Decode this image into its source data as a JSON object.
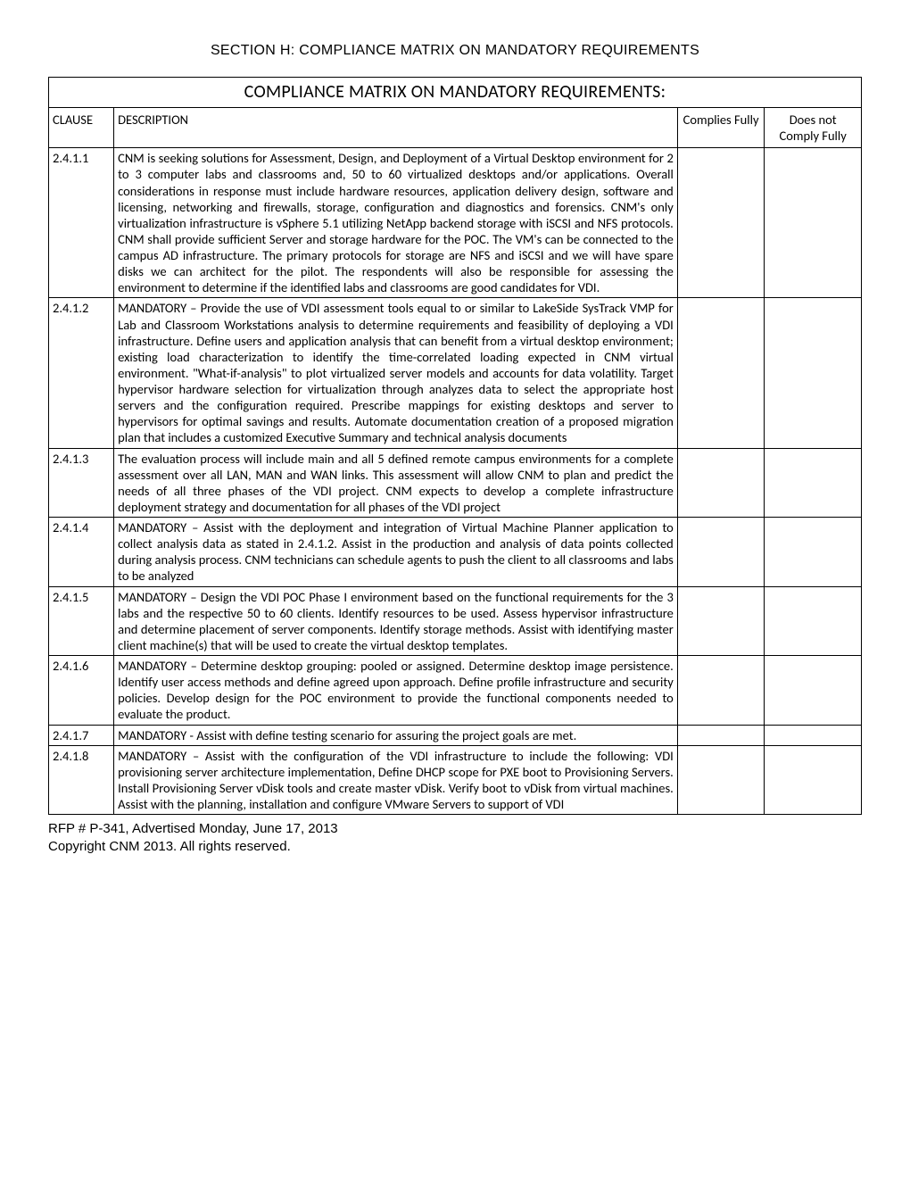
{
  "section_header": "SECTION H:  COMPLIANCE MATRIX ON MANDATORY REQUIREMENTS",
  "table_title": "COMPLIANCE MATRIX ON MANDATORY REQUIREMENTS:",
  "columns": {
    "clause": "CLAUSE",
    "description": "DESCRIPTION",
    "complies": "Complies Fully",
    "not_complies": "Does not Comply Fully"
  },
  "rows": [
    {
      "clause": "2.4.1.1",
      "description": "CNM is seeking solutions for Assessment, Design, and Deployment of a Virtual Desktop environment for 2 to 3 computer labs and classrooms and, 50 to 60 virtualized desktops and/or applications.  Overall considerations in response must include hardware resources, application delivery design, software and licensing, networking and firewalls, storage, configuration and diagnostics and forensics.  CNM's only virtualization infrastructure is vSphere 5.1 utilizing NetApp backend storage with iSCSI and NFS protocols.  CNM shall provide sufficient Server and storage hardware for the POC.  The VM's can be connected to the campus AD infrastructure.  The primary protocols for storage are NFS and iSCSI and we will have spare disks we can architect for the pilot.  The respondents will also be responsible for assessing the environment to determine if the identified labs and classrooms are good candidates for VDI."
    },
    {
      "clause": "2.4.1.2",
      "description": "MANDATORY – Provide the use of VDI assessment tools equal to or similar to LakeSide SysTrack VMP for Lab and Classroom Workstations analysis to determine requirements and feasibility of deploying a VDI infrastructure.  Define users and application analysis that can benefit from a virtual desktop environment; existing load characterization to identify the time-correlated loading expected in CNM virtual environment.  \"What-if-analysis\" to plot virtualized server models and accounts for data volatility.   Target hypervisor hardware selection for virtualization through analyzes data to select the appropriate host servers and the configuration required.  Prescribe mappings for existing desktops and server to hypervisors for optimal savings and results.  Automate documentation creation of a proposed migration plan that includes a customized Executive Summary and technical analysis documents"
    },
    {
      "clause": "2.4.1.3",
      "description": "The evaluation process will include main and all 5 defined remote campus environments for a complete assessment over all LAN, MAN and WAN links.  This assessment will allow CNM to plan and predict the needs of all three phases of the VDI project.   CNM expects to develop a complete infrastructure deployment strategy and documentation for all phases of the VDI project"
    },
    {
      "clause": "2.4.1.4",
      "description": "MANDATORY – Assist with the deployment and integration of Virtual Machine Planner application to collect analysis data as stated in 2.4.1.2.  Assist in the production and analysis of data points collected during analysis process.  CNM technicians can schedule agents to push the client to all classrooms and labs to be analyzed"
    },
    {
      "clause": "2.4.1.5",
      "description": "MANDATORY – Design the VDI POC Phase I environment based on the functional requirements for the 3 labs and the respective 50 to 60 clients.  Identify resources to be used.  Assess hypervisor infrastructure and determine placement of server components.  Identify storage methods.  Assist with identifying master client machine(s) that will be used to create the virtual desktop templates."
    },
    {
      "clause": "2.4.1.6",
      "description": "MANDATORY – Determine desktop grouping: pooled or assigned.  Determine desktop image persistence.  Identify user access methods and define agreed upon approach.  Define profile infrastructure and security policies.  Develop design for the POC environment to provide the functional components needed to evaluate the product."
    },
    {
      "clause": "2.4.1.7",
      "description": "MANDATORY - Assist with define testing scenario for assuring the project goals are met."
    },
    {
      "clause": "2.4.1.8",
      "description": "MANDATORY – Assist with the configuration of the VDI infrastructure to include the following:  VDI provisioning server architecture implementation, Define DHCP scope for PXE boot to Provisioning Servers.  Install Provisioning Server vDisk tools and create master vDisk.  Verify boot to vDisk from virtual machines.  Assist with the planning, installation and configure VMware Servers to support of VDI"
    }
  ],
  "footer": {
    "line1": "RFP # P-341, Advertised Monday, June 17, 2013",
    "line2": "Copyright CNM 2013.  All rights reserved."
  }
}
